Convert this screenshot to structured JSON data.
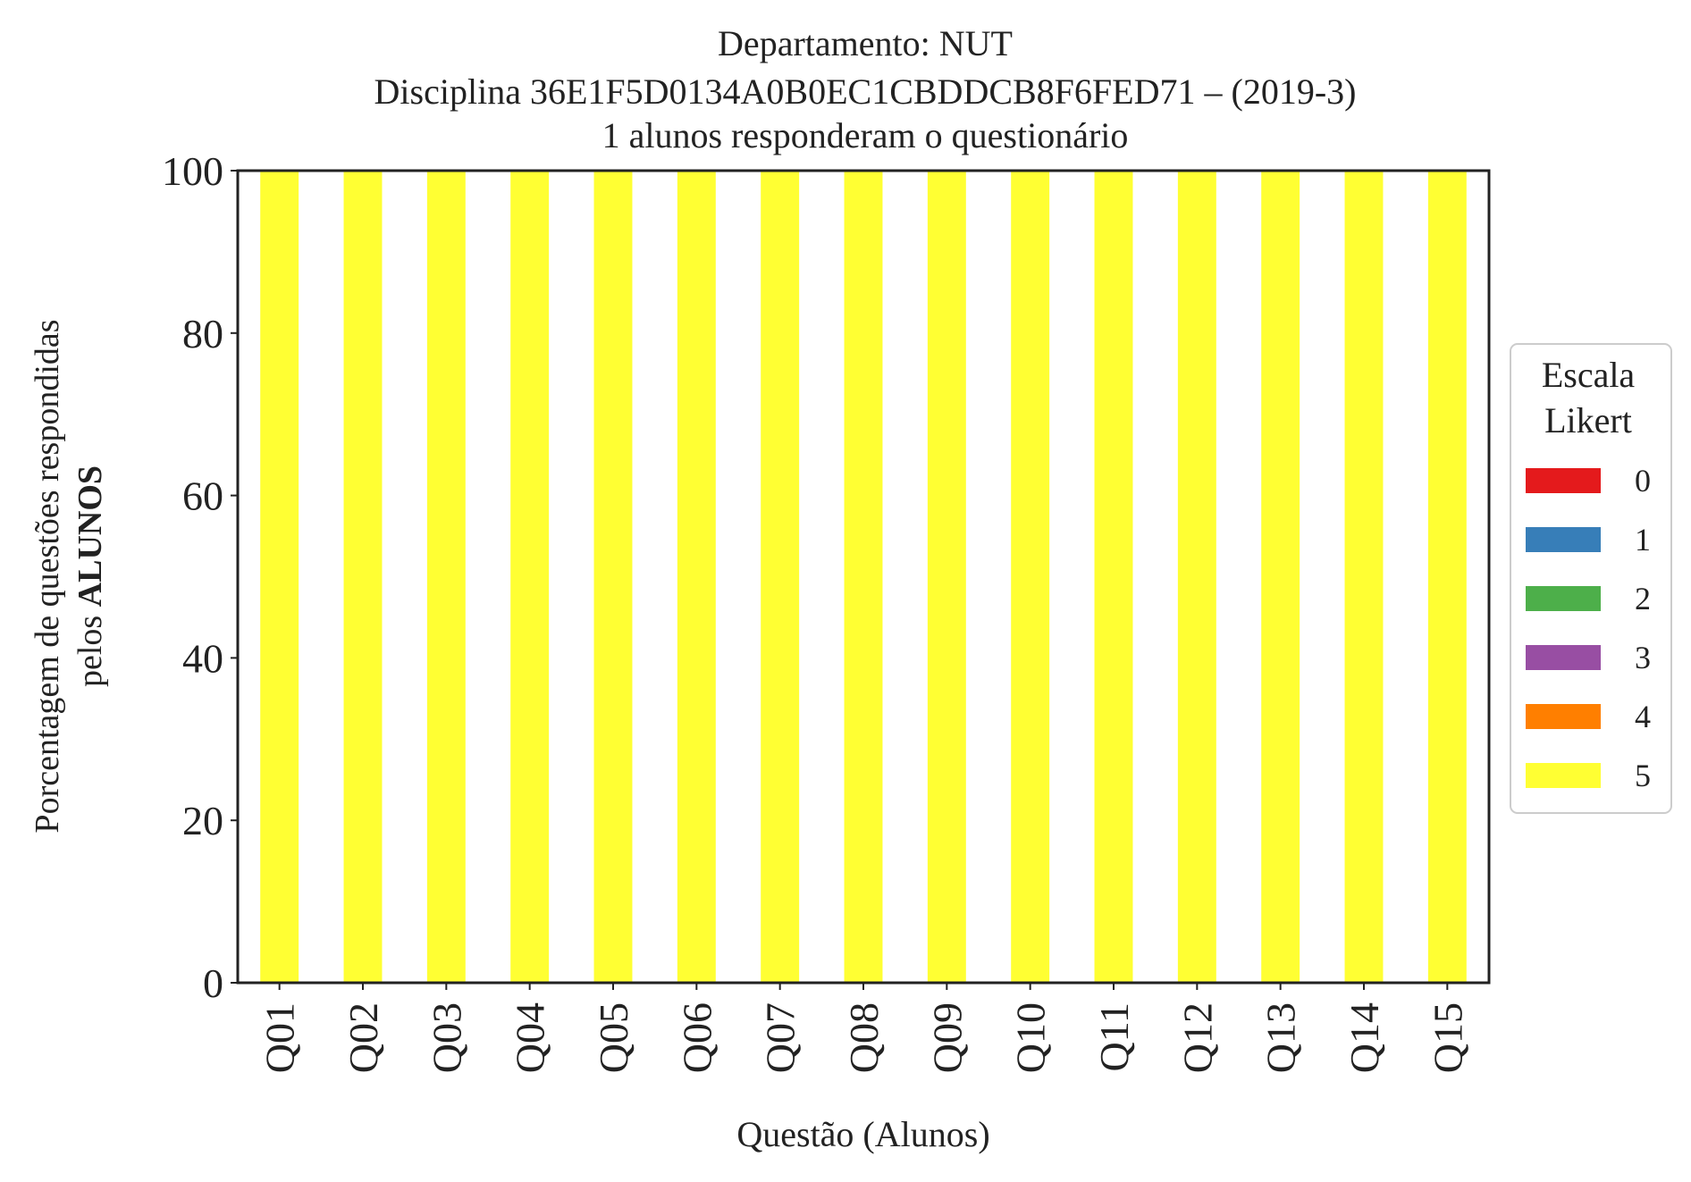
{
  "chart_data": {
    "type": "bar",
    "stacked": true,
    "title_lines": [
      "Departamento: NUT",
      "Disciplina 36E1F5D0134A0B0EC1CBDDCB8F6FED71 – (2019-3)",
      "1 alunos responderam o questionário"
    ],
    "xlabel": "Questão (Alunos)",
    "ylabel_line1": "Porcentagem de questões respondidas",
    "ylabel_line2_prefix": "pelos ",
    "ylabel_line2_bold": "ALUNOS",
    "ylim": [
      0,
      100
    ],
    "yticks": [
      "0",
      "20",
      "40",
      "60",
      "80",
      "100"
    ],
    "categories": [
      "Q01",
      "Q02",
      "Q03",
      "Q04",
      "Q05",
      "Q06",
      "Q07",
      "Q08",
      "Q09",
      "Q10",
      "Q11",
      "Q12",
      "Q13",
      "Q14",
      "Q15"
    ],
    "series": [
      {
        "name": "0",
        "color": "#e41a1c",
        "values": [
          0,
          0,
          0,
          0,
          0,
          0,
          0,
          0,
          0,
          0,
          0,
          0,
          0,
          0,
          0
        ]
      },
      {
        "name": "1",
        "color": "#377eb8",
        "values": [
          0,
          0,
          0,
          0,
          0,
          0,
          0,
          0,
          0,
          0,
          0,
          0,
          0,
          0,
          0
        ]
      },
      {
        "name": "2",
        "color": "#4daf4a",
        "values": [
          0,
          0,
          0,
          0,
          0,
          0,
          0,
          0,
          0,
          0,
          0,
          0,
          0,
          0,
          0
        ]
      },
      {
        "name": "3",
        "color": "#984ea3",
        "values": [
          0,
          0,
          0,
          0,
          0,
          0,
          0,
          0,
          0,
          0,
          0,
          0,
          0,
          0,
          0
        ]
      },
      {
        "name": "4",
        "color": "#ff7f00",
        "values": [
          0,
          0,
          0,
          0,
          0,
          0,
          0,
          0,
          0,
          0,
          0,
          0,
          0,
          0,
          0
        ]
      },
      {
        "name": "5",
        "color": "#ffff33",
        "values": [
          100,
          100,
          100,
          100,
          100,
          100,
          100,
          100,
          100,
          100,
          100,
          100,
          100,
          100,
          100
        ]
      }
    ],
    "legend": {
      "title_lines": [
        "Escala",
        "Likert"
      ],
      "placement": "center-right, outside"
    },
    "grid": false
  }
}
